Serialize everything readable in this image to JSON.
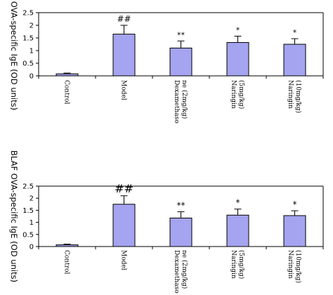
{
  "chart_data": [
    {
      "type": "bar",
      "ylabel": "BLAF OVA-specific IgE (OD units)",
      "categories": [
        [
          "Control"
        ],
        [
          "Model"
        ],
        [
          "Dexamethaso",
          "ne (2mg/kg)"
        ],
        [
          "Naringin",
          "(5mg/kg)"
        ],
        [
          "Naringin",
          "(10mg/kg)"
        ]
      ],
      "values": [
        0.08,
        1.65,
        1.1,
        1.32,
        1.25
      ],
      "errors": [
        0.03,
        0.35,
        0.28,
        0.25,
        0.22
      ],
      "annotations": [
        "",
        "##",
        "**",
        "*",
        "*"
      ],
      "ylim": [
        0,
        2.5
      ],
      "yticks": [
        "0",
        "0.5",
        "1",
        "1.5",
        "2",
        "2.5"
      ],
      "bar_color": "#a4a4f0",
      "grid": false
    },
    {
      "type": "bar",
      "ylabel": "BLAF OVA-specific IgE (OD units)",
      "categories": [
        [
          "Control"
        ],
        [
          "Model"
        ],
        [
          "Dexamethaso",
          "ne (2mg/kg)"
        ],
        [
          "Naringin",
          "(5mg/kg)"
        ],
        [
          "Naringin",
          "(10mg/kg)"
        ]
      ],
      "values": [
        0.07,
        1.75,
        1.18,
        1.3,
        1.28
      ],
      "errors": [
        0.03,
        0.35,
        0.26,
        0.25,
        0.2
      ],
      "annotations": [
        "",
        "##",
        "**",
        "*",
        "*"
      ],
      "ylim": [
        0,
        2.5
      ],
      "yticks": [
        "0",
        "0.5",
        "1",
        "1.5",
        "2",
        "2.5"
      ],
      "bar_color": "#a4a4f0",
      "grid": false
    }
  ]
}
